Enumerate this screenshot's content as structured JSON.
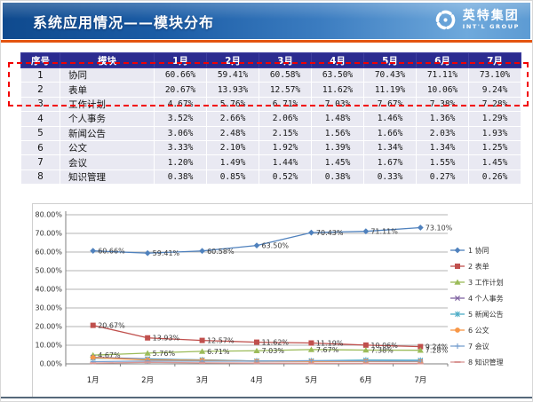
{
  "header": {
    "title": "系统应用情况——模块分布",
    "logo_cn": "英特集团",
    "logo_en": "INT'L GROUP"
  },
  "table": {
    "columns": [
      "序号",
      "模块",
      "1月",
      "2月",
      "3月",
      "4月",
      "5月",
      "6月",
      "7月"
    ],
    "rows": [
      {
        "no": "1",
        "module": "协同",
        "values": [
          "60.66%",
          "59.41%",
          "60.58%",
          "63.50%",
          "70.43%",
          "71.11%",
          "73.10%"
        ]
      },
      {
        "no": "2",
        "module": "表单",
        "values": [
          "20.67%",
          "13.93%",
          "12.57%",
          "11.62%",
          "11.19%",
          "10.06%",
          "9.24%"
        ]
      },
      {
        "no": "3",
        "module": "工作计划",
        "values": [
          "4.67%",
          "5.76%",
          "6.71%",
          "7.03%",
          "7.67%",
          "7.38%",
          "7.28%"
        ]
      },
      {
        "no": "4",
        "module": "个人事务",
        "values": [
          "3.52%",
          "2.66%",
          "2.06%",
          "1.48%",
          "1.46%",
          "1.36%",
          "1.29%"
        ]
      },
      {
        "no": "5",
        "module": "新闻公告",
        "values": [
          "3.06%",
          "2.48%",
          "2.15%",
          "1.56%",
          "1.66%",
          "2.03%",
          "1.93%"
        ]
      },
      {
        "no": "6",
        "module": "公文",
        "values": [
          "3.33%",
          "2.10%",
          "1.92%",
          "1.39%",
          "1.34%",
          "1.34%",
          "1.25%"
        ]
      },
      {
        "no": "7",
        "module": "会议",
        "values": [
          "1.20%",
          "1.49%",
          "1.44%",
          "1.45%",
          "1.67%",
          "1.55%",
          "1.45%"
        ]
      },
      {
        "no": "8",
        "module": "知识管理",
        "values": [
          "0.38%",
          "0.85%",
          "0.52%",
          "0.38%",
          "0.33%",
          "0.27%",
          "0.26%"
        ]
      }
    ],
    "highlighted_rows": [
      "协同",
      "表单"
    ]
  },
  "chart_data": {
    "type": "line",
    "categories": [
      "1月",
      "2月",
      "3月",
      "4月",
      "5月",
      "6月",
      "7月"
    ],
    "series": [
      {
        "name": "1 协同",
        "values": [
          60.66,
          59.41,
          60.58,
          63.5,
          70.43,
          71.11,
          73.1
        ],
        "color": "#4f81bd",
        "marker": "diamond",
        "labels": true
      },
      {
        "name": "2 表单",
        "values": [
          20.67,
          13.93,
          12.57,
          11.62,
          11.19,
          10.06,
          9.24
        ],
        "color": "#c0504d",
        "marker": "square",
        "labels": true
      },
      {
        "name": "3 工作计划",
        "values": [
          4.67,
          5.76,
          6.71,
          7.03,
          7.67,
          7.38,
          7.28
        ],
        "color": "#9bbb59",
        "marker": "triangle",
        "labels": true
      },
      {
        "name": "4 个人事务",
        "values": [
          3.52,
          2.66,
          2.06,
          1.48,
          1.46,
          1.36,
          1.29
        ],
        "color": "#8064a2",
        "marker": "x",
        "labels": false
      },
      {
        "name": "5 新闻公告",
        "values": [
          3.06,
          2.48,
          2.15,
          1.56,
          1.66,
          2.03,
          1.93
        ],
        "color": "#4bacc6",
        "marker": "asterisk",
        "labels": false
      },
      {
        "name": "6 公文",
        "values": [
          3.33,
          2.1,
          1.92,
          1.39,
          1.34,
          1.34,
          1.25
        ],
        "color": "#f79646",
        "marker": "circle",
        "labels": false
      },
      {
        "name": "7 会议",
        "values": [
          1.2,
          1.49,
          1.44,
          1.45,
          1.67,
          1.55,
          1.45
        ],
        "color": "#79a0cf",
        "marker": "plus",
        "labels": false
      },
      {
        "name": "8 知识管理",
        "values": [
          0.38,
          0.85,
          0.52,
          0.38,
          0.33,
          0.27,
          0.26
        ],
        "color": "#d99694",
        "marker": "dash",
        "labels": false
      }
    ],
    "ylim": [
      0,
      80
    ],
    "ytick_step": 10,
    "ytick_format_suffix": "%",
    "grid": true,
    "legend_position": "right"
  },
  "colors": {
    "header_accent": "#e4540f",
    "table_header_bg": "#2b2b90",
    "highlight_border": "#f20000",
    "footer_line": "#56687a"
  }
}
